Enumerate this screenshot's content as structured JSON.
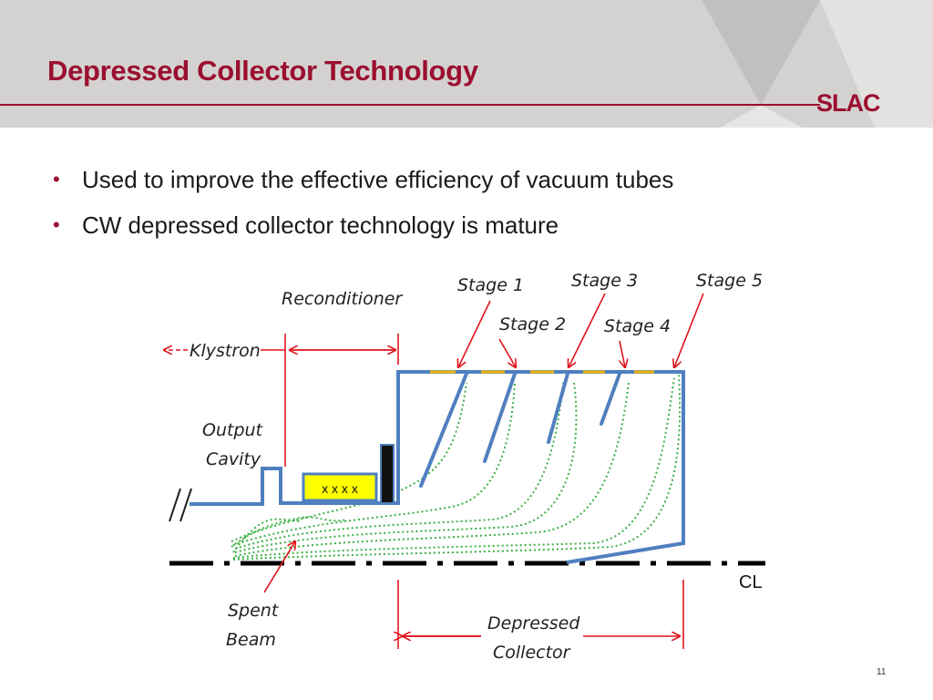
{
  "slide": {
    "title": "Depressed Collector Technology",
    "logo": "SLAC",
    "page_number": "11",
    "bullets": [
      "Used to improve the effective efficiency of vacuum tubes",
      "CW depressed collector technology is mature"
    ]
  },
  "diagram": {
    "labels": {
      "reconditioner": "Reconditioner",
      "klystron": "Klystron",
      "output_line1": "Output",
      "output_line2": "Cavity",
      "spent_line1": "Spent",
      "spent_line2": "Beam",
      "collector_line1": "Depressed",
      "collector_line2": "Collector",
      "cl": "CL",
      "xxxx": "x x x x",
      "stage1": "Stage 1",
      "stage2": "Stage 2",
      "stage3": "Stage 3",
      "stage4": "Stage 4",
      "stage5": "Stage 5"
    },
    "colors": {
      "structure": "#4f7fbf",
      "annotation": "#e0141c",
      "trajectory": "#3cb043",
      "insulator": "#f2b705",
      "magnet": "#ffff00"
    }
  }
}
